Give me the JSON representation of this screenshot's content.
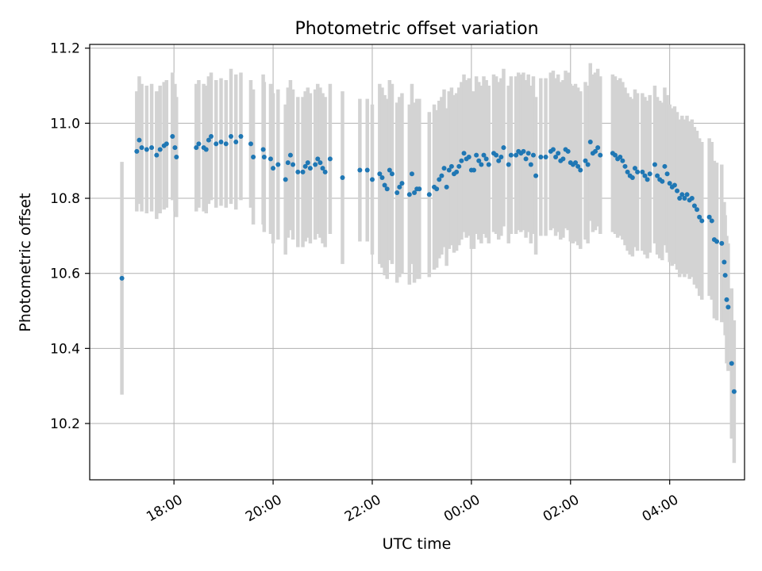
{
  "chart_data": {
    "type": "scatter",
    "title": "Photometric offset variation",
    "xlabel": "UTC time",
    "ylabel": "Photometric offset",
    "x_unit": "hours since 16:00 UTC (values above 8 wrap past midnight)",
    "xlim": [
      0.3,
      13.51
    ],
    "ylim": [
      10.05,
      11.21
    ],
    "x_ticks": [
      {
        "value": 2,
        "label": "18:00"
      },
      {
        "value": 4,
        "label": "20:00"
      },
      {
        "value": 6,
        "label": "22:00"
      },
      {
        "value": 8,
        "label": "00:00"
      },
      {
        "value": 10,
        "label": "02:00"
      },
      {
        "value": 12,
        "label": "04:00"
      }
    ],
    "y_ticks": [
      {
        "value": 10.2,
        "label": "10.2"
      },
      {
        "value": 10.4,
        "label": "10.4"
      },
      {
        "value": 10.6,
        "label": "10.6"
      },
      {
        "value": 10.8,
        "label": "10.8"
      },
      {
        "value": 11.0,
        "label": "11.0"
      },
      {
        "value": 11.2,
        "label": "11.2"
      }
    ],
    "grid": true,
    "colors": {
      "marker": "#1f77b4",
      "errorbar": "#d3d3d3",
      "grid": "#b0b0b0",
      "axis": "#000000"
    },
    "series": [
      {
        "name": "offset",
        "points": [
          [
            0.95,
            10.587,
            0.31
          ],
          [
            1.25,
            10.925,
            0.16
          ],
          [
            1.3,
            10.955,
            0.17
          ],
          [
            1.35,
            10.935,
            0.17
          ],
          [
            1.45,
            10.93,
            0.17
          ],
          [
            1.55,
            10.935,
            0.17
          ],
          [
            1.65,
            10.915,
            0.17
          ],
          [
            1.72,
            10.93,
            0.17
          ],
          [
            1.8,
            10.94,
            0.17
          ],
          [
            1.85,
            10.945,
            0.17
          ],
          [
            1.97,
            10.965,
            0.17
          ],
          [
            2.02,
            10.935,
            0.17
          ],
          [
            2.05,
            10.91,
            0.16
          ],
          [
            2.45,
            10.935,
            0.17
          ],
          [
            2.5,
            10.945,
            0.17
          ],
          [
            2.6,
            10.935,
            0.17
          ],
          [
            2.65,
            10.93,
            0.17
          ],
          [
            2.7,
            10.955,
            0.17
          ],
          [
            2.75,
            10.965,
            0.17
          ],
          [
            2.85,
            10.945,
            0.17
          ],
          [
            2.95,
            10.95,
            0.17
          ],
          [
            3.05,
            10.945,
            0.17
          ],
          [
            3.15,
            10.965,
            0.18
          ],
          [
            3.25,
            10.95,
            0.18
          ],
          [
            3.35,
            10.965,
            0.17
          ],
          [
            3.55,
            10.945,
            0.17
          ],
          [
            3.6,
            10.91,
            0.18
          ],
          [
            3.8,
            10.93,
            0.2
          ],
          [
            3.82,
            10.91,
            0.2
          ],
          [
            3.95,
            10.905,
            0.2
          ],
          [
            4.0,
            10.88,
            0.2
          ],
          [
            4.1,
            10.89,
            0.2
          ],
          [
            4.25,
            10.85,
            0.2
          ],
          [
            4.3,
            10.895,
            0.2
          ],
          [
            4.35,
            10.915,
            0.2
          ],
          [
            4.4,
            10.89,
            0.2
          ],
          [
            4.5,
            10.87,
            0.2
          ],
          [
            4.6,
            10.87,
            0.2
          ],
          [
            4.65,
            10.885,
            0.2
          ],
          [
            4.7,
            10.895,
            0.2
          ],
          [
            4.75,
            10.88,
            0.2
          ],
          [
            4.85,
            10.89,
            0.2
          ],
          [
            4.9,
            10.905,
            0.2
          ],
          [
            4.95,
            10.895,
            0.2
          ],
          [
            5.0,
            10.88,
            0.2
          ],
          [
            5.05,
            10.87,
            0.2
          ],
          [
            5.15,
            10.905,
            0.2
          ],
          [
            5.4,
            10.855,
            0.23
          ],
          [
            5.75,
            10.875,
            0.19
          ],
          [
            5.9,
            10.875,
            0.19
          ],
          [
            6.0,
            10.85,
            0.2
          ],
          [
            6.15,
            10.865,
            0.24
          ],
          [
            6.2,
            10.855,
            0.24
          ],
          [
            6.25,
            10.835,
            0.24
          ],
          [
            6.3,
            10.825,
            0.24
          ],
          [
            6.35,
            10.875,
            0.24
          ],
          [
            6.4,
            10.865,
            0.24
          ],
          [
            6.5,
            10.815,
            0.24
          ],
          [
            6.55,
            10.83,
            0.24
          ],
          [
            6.6,
            10.84,
            0.24
          ],
          [
            6.75,
            10.81,
            0.24
          ],
          [
            6.8,
            10.865,
            0.24
          ],
          [
            6.85,
            10.815,
            0.24
          ],
          [
            6.9,
            10.825,
            0.24
          ],
          [
            6.95,
            10.825,
            0.24
          ],
          [
            7.15,
            10.81,
            0.22
          ],
          [
            7.25,
            10.83,
            0.22
          ],
          [
            7.3,
            10.825,
            0.21
          ],
          [
            7.35,
            10.85,
            0.21
          ],
          [
            7.4,
            10.86,
            0.21
          ],
          [
            7.45,
            10.88,
            0.21
          ],
          [
            7.5,
            10.83,
            0.21
          ],
          [
            7.55,
            10.875,
            0.21
          ],
          [
            7.6,
            10.885,
            0.21
          ],
          [
            7.65,
            10.865,
            0.21
          ],
          [
            7.7,
            10.87,
            0.21
          ],
          [
            7.75,
            10.885,
            0.21
          ],
          [
            7.8,
            10.9,
            0.21
          ],
          [
            7.85,
            10.92,
            0.21
          ],
          [
            7.9,
            10.905,
            0.21
          ],
          [
            7.95,
            10.91,
            0.21
          ],
          [
            8.0,
            10.875,
            0.21
          ],
          [
            8.05,
            10.875,
            0.21
          ],
          [
            8.1,
            10.915,
            0.21
          ],
          [
            8.15,
            10.9,
            0.21
          ],
          [
            8.2,
            10.89,
            0.21
          ],
          [
            8.25,
            10.915,
            0.21
          ],
          [
            8.3,
            10.905,
            0.21
          ],
          [
            8.35,
            10.89,
            0.21
          ],
          [
            8.45,
            10.92,
            0.21
          ],
          [
            8.5,
            10.915,
            0.21
          ],
          [
            8.55,
            10.9,
            0.21
          ],
          [
            8.6,
            10.91,
            0.21
          ],
          [
            8.65,
            10.935,
            0.21
          ],
          [
            8.75,
            10.89,
            0.21
          ],
          [
            8.8,
            10.915,
            0.21
          ],
          [
            8.9,
            10.915,
            0.21
          ],
          [
            8.95,
            10.925,
            0.21
          ],
          [
            9.0,
            10.92,
            0.21
          ],
          [
            9.05,
            10.925,
            0.21
          ],
          [
            9.1,
            10.905,
            0.21
          ],
          [
            9.15,
            10.92,
            0.21
          ],
          [
            9.2,
            10.89,
            0.21
          ],
          [
            9.25,
            10.915,
            0.21
          ],
          [
            9.3,
            10.86,
            0.21
          ],
          [
            9.4,
            10.91,
            0.21
          ],
          [
            9.5,
            10.91,
            0.21
          ],
          [
            9.6,
            10.925,
            0.21
          ],
          [
            9.65,
            10.93,
            0.21
          ],
          [
            9.7,
            10.91,
            0.21
          ],
          [
            9.75,
            10.92,
            0.21
          ],
          [
            9.8,
            10.9,
            0.21
          ],
          [
            9.85,
            10.905,
            0.21
          ],
          [
            9.9,
            10.93,
            0.21
          ],
          [
            9.95,
            10.925,
            0.21
          ],
          [
            10.0,
            10.895,
            0.21
          ],
          [
            10.05,
            10.89,
            0.21
          ],
          [
            10.1,
            10.895,
            0.21
          ],
          [
            10.15,
            10.885,
            0.21
          ],
          [
            10.2,
            10.875,
            0.21
          ],
          [
            10.3,
            10.9,
            0.21
          ],
          [
            10.35,
            10.89,
            0.21
          ],
          [
            10.4,
            10.95,
            0.21
          ],
          [
            10.45,
            10.92,
            0.21
          ],
          [
            10.5,
            10.925,
            0.21
          ],
          [
            10.55,
            10.935,
            0.21
          ],
          [
            10.6,
            10.915,
            0.21
          ],
          [
            10.85,
            10.92,
            0.21
          ],
          [
            10.9,
            10.915,
            0.21
          ],
          [
            10.95,
            10.905,
            0.21
          ],
          [
            11.0,
            10.91,
            0.21
          ],
          [
            11.05,
            10.9,
            0.21
          ],
          [
            11.1,
            10.885,
            0.21
          ],
          [
            11.15,
            10.87,
            0.21
          ],
          [
            11.2,
            10.86,
            0.21
          ],
          [
            11.25,
            10.855,
            0.21
          ],
          [
            11.3,
            10.88,
            0.21
          ],
          [
            11.35,
            10.87,
            0.21
          ],
          [
            11.45,
            10.87,
            0.21
          ],
          [
            11.5,
            10.86,
            0.21
          ],
          [
            11.55,
            10.85,
            0.21
          ],
          [
            11.6,
            10.865,
            0.21
          ],
          [
            11.7,
            10.89,
            0.21
          ],
          [
            11.75,
            10.86,
            0.21
          ],
          [
            11.8,
            10.85,
            0.21
          ],
          [
            11.85,
            10.845,
            0.21
          ],
          [
            11.9,
            10.885,
            0.21
          ],
          [
            11.95,
            10.865,
            0.21
          ],
          [
            12.0,
            10.84,
            0.21
          ],
          [
            12.05,
            10.83,
            0.21
          ],
          [
            12.1,
            10.835,
            0.21
          ],
          [
            12.15,
            10.82,
            0.21
          ],
          [
            12.2,
            10.8,
            0.21
          ],
          [
            12.25,
            10.81,
            0.21
          ],
          [
            12.3,
            10.8,
            0.21
          ],
          [
            12.35,
            10.81,
            0.21
          ],
          [
            12.4,
            10.795,
            0.21
          ],
          [
            12.45,
            10.8,
            0.21
          ],
          [
            12.5,
            10.78,
            0.21
          ],
          [
            12.55,
            10.77,
            0.21
          ],
          [
            12.6,
            10.75,
            0.21
          ],
          [
            12.65,
            10.74,
            0.21
          ],
          [
            12.8,
            10.75,
            0.21
          ],
          [
            12.85,
            10.74,
            0.21
          ],
          [
            12.9,
            10.69,
            0.21
          ],
          [
            12.95,
            10.685,
            0.21
          ],
          [
            13.05,
            10.68,
            0.21
          ],
          [
            13.1,
            10.63,
            0.16
          ],
          [
            13.12,
            10.595,
            0.16
          ],
          [
            13.15,
            10.53,
            0.17
          ],
          [
            13.18,
            10.51,
            0.17
          ],
          [
            13.25,
            10.36,
            0.2
          ],
          [
            13.3,
            10.285,
            0.19
          ]
        ]
      }
    ]
  }
}
